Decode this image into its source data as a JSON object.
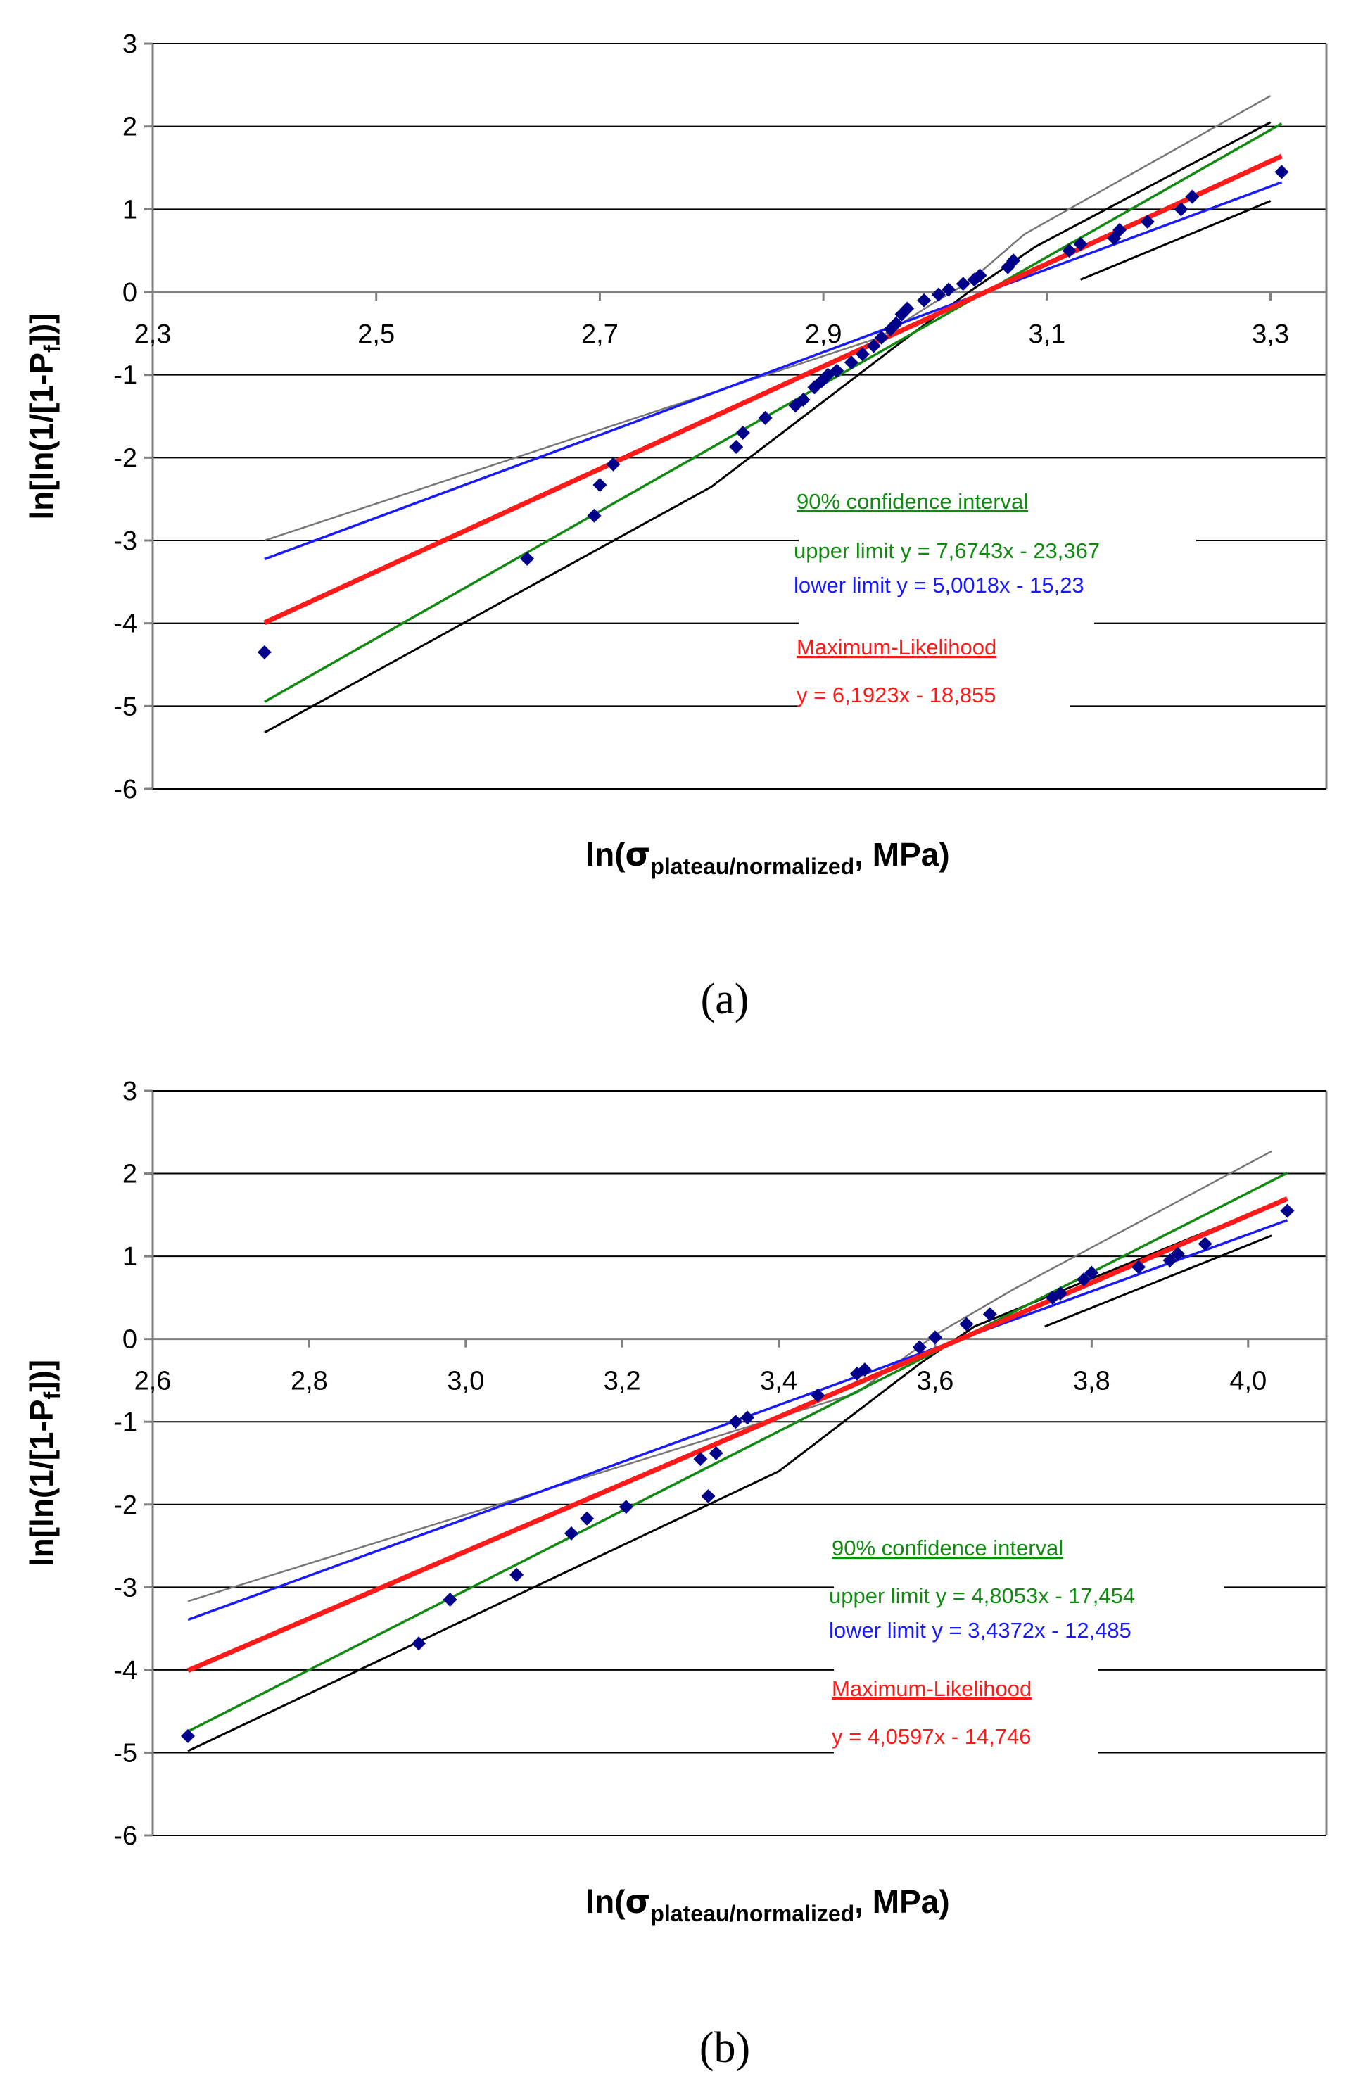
{
  "colors": {
    "upper": "#128a12",
    "lower": "#1a1aff",
    "ml": "#ff1a1a",
    "ci_outer": "#000000",
    "ci_outer_light": "#777777",
    "points": "#00008b",
    "grid": "#000000"
  },
  "chart_data": [
    {
      "panel_label": "(a)",
      "type": "scatter",
      "title": "",
      "xlabel_prefix": "ln(",
      "xlabel_sigma": "σ",
      "xlabel_sub": "plateau/normalized",
      "xlabel_suffix": ", MPa)",
      "ylabel": "ln[ln(1/[1-Pf])]",
      "ylabel_pre": "ln[ln(1/[1-P",
      "ylabel_sub": "f",
      "ylabel_post": "])]",
      "xlim": [
        2.3,
        3.35
      ],
      "ylim": [
        -6,
        3
      ],
      "xticks": [
        2.3,
        2.5,
        2.7,
        2.9,
        3.1,
        3.3
      ],
      "xtick_labels": [
        "2,3",
        "2,5",
        "2,7",
        "2,9",
        "3,1",
        "3,3"
      ],
      "yticks": [
        3,
        2,
        1,
        0,
        -1,
        -2,
        -3,
        -4,
        -5,
        -6
      ],
      "ytick_labels": [
        "3",
        "2",
        "1",
        "0",
        "-1",
        "-2",
        "-3",
        "-4",
        "-5",
        "-6"
      ],
      "grid": "horizontal",
      "legend": {
        "ci_title": "90% confidence interval",
        "upper_text": "upper limit y = 7,6743x - 23,367",
        "lower_text": "lower limit y = 5,0018x - 15,23",
        "ml_title": "Maximum-Likelihood",
        "ml_text": "y = 6,1923x - 18,855"
      },
      "lines": [
        {
          "name": "upper limit",
          "role": "upper",
          "slope": 7.6743,
          "intercept": -23.367,
          "x_range": [
            2.4,
            3.31
          ]
        },
        {
          "name": "lower limit",
          "role": "lower",
          "slope": 5.0018,
          "intercept": -15.23,
          "x_range": [
            2.4,
            3.31
          ]
        },
        {
          "name": "Maximum-Likelihood",
          "role": "ml",
          "slope": 6.1923,
          "intercept": -18.855,
          "x_range": [
            2.4,
            3.31
          ]
        }
      ],
      "bounds": [
        {
          "role": "outer_upper",
          "x": [
            2.4,
            2.95,
            3.0,
            3.03,
            3.08,
            3.3
          ],
          "y": [
            -3.0,
            -0.55,
            -0.12,
            0.12,
            0.7,
            2.37
          ]
        },
        {
          "role": "outer_lower",
          "x": [
            2.4,
            2.8,
            2.97,
            3.03,
            3.09,
            3.3
          ],
          "y": [
            -5.32,
            -2.35,
            -0.6,
            0.0,
            0.55,
            2.05
          ]
        },
        {
          "role": "inner_upper",
          "x": [
            3.13,
            3.3
          ],
          "y": [
            0.15,
            1.1
          ]
        }
      ],
      "points": {
        "x": [
          2.4,
          2.635,
          2.695,
          2.7,
          2.712,
          2.822,
          2.828,
          2.848,
          2.875,
          2.882,
          2.892,
          2.898,
          2.904,
          2.912,
          2.925,
          2.935,
          2.945,
          2.952,
          2.96,
          2.965,
          2.97,
          2.975,
          2.99,
          3.003,
          3.012,
          3.025,
          3.035,
          3.04,
          3.065,
          3.07,
          3.12,
          3.13,
          3.16,
          3.165,
          3.19,
          3.22,
          3.23,
          3.31
        ],
        "y": [
          -4.35,
          -3.22,
          -2.7,
          -2.33,
          -2.08,
          -1.87,
          -1.7,
          -1.52,
          -1.37,
          -1.3,
          -1.15,
          -1.08,
          -1.0,
          -0.95,
          -0.85,
          -0.75,
          -0.65,
          -0.55,
          -0.45,
          -0.38,
          -0.27,
          -0.2,
          -0.1,
          -0.03,
          0.03,
          0.1,
          0.15,
          0.2,
          0.3,
          0.38,
          0.5,
          0.58,
          0.65,
          0.75,
          0.85,
          1.0,
          1.15,
          1.45
        ]
      }
    },
    {
      "panel_label": "(b)",
      "type": "scatter",
      "title": "",
      "xlabel_prefix": "ln(",
      "xlabel_sigma": "σ",
      "xlabel_sub": "plateau/normalized",
      "xlabel_suffix": ", MPa)",
      "ylabel": "ln[ln(1/[1-Pf])]",
      "ylabel_pre": "ln[ln(1/[1-P",
      "ylabel_sub": "f",
      "ylabel_post": "])]",
      "xlim": [
        2.6,
        4.1
      ],
      "ylim": [
        -6,
        3
      ],
      "xticks": [
        2.6,
        2.8,
        3.0,
        3.2,
        3.4,
        3.6,
        3.8,
        4.0
      ],
      "xtick_labels": [
        "2,6",
        "2,8",
        "3,0",
        "3,2",
        "3,4",
        "3,6",
        "3,8",
        "4,0"
      ],
      "yticks": [
        3,
        2,
        1,
        0,
        -1,
        -2,
        -3,
        -4,
        -5,
        -6
      ],
      "ytick_labels": [
        "3",
        "2",
        "1",
        "0",
        "-1",
        "-2",
        "-3",
        "-4",
        "-5",
        "-6"
      ],
      "grid": "horizontal",
      "legend": {
        "ci_title": "90% confidence interval",
        "upper_text": "upper limit y = 4,8053x - 17,454",
        "lower_text": "lower limit y = 3,4372x - 12,485",
        "ml_title": "Maximum-Likelihood",
        "ml_text": "y = 4,0597x - 14,746"
      },
      "lines": [
        {
          "name": "upper limit",
          "role": "upper",
          "slope": 4.8053,
          "intercept": -17.454,
          "x_range": [
            2.645,
            4.05
          ]
        },
        {
          "name": "lower limit",
          "role": "lower",
          "slope": 3.4372,
          "intercept": -12.485,
          "x_range": [
            2.645,
            4.05
          ]
        },
        {
          "name": "Maximum-Likelihood",
          "role": "ml",
          "slope": 4.0597,
          "intercept": -14.746,
          "x_range": [
            2.645,
            4.05
          ]
        }
      ],
      "bounds": [
        {
          "role": "outer_upper",
          "x": [
            2.645,
            3.5,
            3.6,
            3.7,
            4.03
          ],
          "y": [
            -3.17,
            -0.65,
            0.05,
            0.6,
            2.27
          ]
        },
        {
          "role": "outer_lower",
          "x": [
            2.645,
            3.4,
            3.58,
            3.65,
            4.03
          ],
          "y": [
            -4.98,
            -1.6,
            -0.3,
            0.15,
            1.62
          ]
        },
        {
          "role": "inner_upper",
          "x": [
            3.74,
            4.03
          ],
          "y": [
            0.15,
            1.25
          ]
        }
      ],
      "points": {
        "x": [
          2.645,
          2.94,
          2.98,
          3.065,
          3.135,
          3.155,
          3.205,
          3.31,
          3.3,
          3.32,
          3.345,
          3.36,
          3.45,
          3.5,
          3.51,
          3.58,
          3.6,
          3.64,
          3.67,
          3.75,
          3.76,
          3.79,
          3.8,
          3.86,
          3.9,
          3.91,
          3.945,
          4.05
        ],
        "y": [
          -4.8,
          -3.68,
          -3.15,
          -2.85,
          -2.35,
          -2.17,
          -2.03,
          -1.9,
          -1.45,
          -1.38,
          -1.0,
          -0.95,
          -0.68,
          -0.42,
          -0.37,
          -0.1,
          0.02,
          0.18,
          0.3,
          0.5,
          0.55,
          0.72,
          0.8,
          0.87,
          0.95,
          1.03,
          1.15,
          1.55
        ]
      }
    }
  ]
}
